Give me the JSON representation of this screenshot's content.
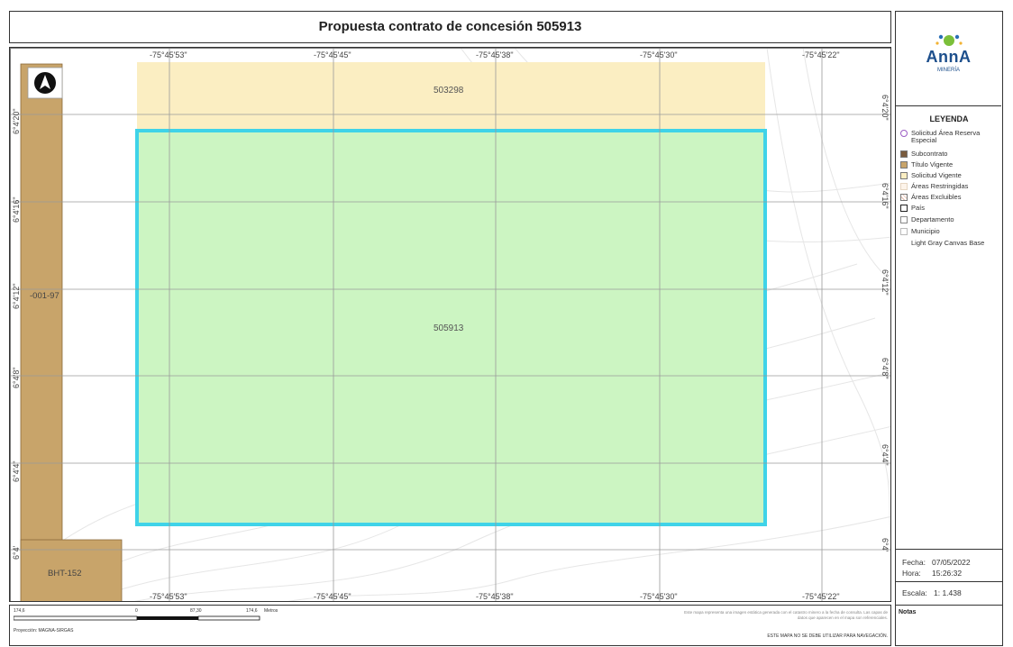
{
  "title": "Propuesta contrato de concesión 505913",
  "map": {
    "top_lon_labels": [
      "-75°45'53\"",
      "-75°45'45\"",
      "-75°45'38\"",
      "-75°45'30\"",
      "-75°45'22\""
    ],
    "bottom_lon_labels": [
      "-75°45'53\"",
      "-75°45'45\"",
      "-75°45'38\"",
      "-75°45'30\"",
      "-75°45'22\""
    ],
    "left_lat_labels": [
      "6°4'20\"",
      "6°4'16\"",
      "6°4'12\"",
      "6°4'8\"",
      "6°4'4\"",
      "6°4'"
    ],
    "right_lat_labels": [
      "6°4'20\"",
      "6°4'16\"",
      "6°4'12\"",
      "6°4'8\"",
      "6°4'4\"",
      "6°4'"
    ],
    "areas": {
      "yellow_label": "503298",
      "green_label": "505913",
      "brown_strip_label": "-001-97",
      "brown_bottom_label": "BHT-152"
    },
    "colors": {
      "solicitud_vigente": "#fbeec2",
      "propuesta": "#ccf5c2",
      "propuesta_border": "#3fd3e8",
      "titulo_vigente": "#c8a46a",
      "grid": "#9a9a9a"
    }
  },
  "logo": {
    "text": "AnnA",
    "subtext": "MINERÍA"
  },
  "legend": {
    "title": "LEYENDA",
    "items": [
      {
        "label": "Solicitud Área Reserva Especial",
        "swatch": "purple-ring"
      },
      {
        "label": "Subcontrato",
        "swatch": "#7a5c3e"
      },
      {
        "label": "Título Vigente",
        "swatch": "#c8a46a"
      },
      {
        "label": "Solicitud Vigente",
        "swatch": "#fbeec2"
      },
      {
        "label": "Áreas Restringidas",
        "swatch": "#fdf4ea"
      },
      {
        "label": "Áreas Excluibles",
        "swatch": "hatch"
      },
      {
        "label": "País",
        "swatch": "#ffffff"
      },
      {
        "label": "Departamento",
        "swatch": "#ffffff"
      },
      {
        "label": "Municipio",
        "swatch": "#ffffff"
      },
      {
        "label": "Light Gray Canvas Base",
        "swatch": "none"
      }
    ]
  },
  "info": {
    "fecha_label": "Fecha:",
    "fecha_value": "07/05/2022",
    "hora_label": "Hora:",
    "hora_value": "15:26:32",
    "escala_label": "Escala:",
    "escala_value": "1: 1.438",
    "notas_label": "Notas"
  },
  "scalebar": {
    "labels": [
      "174,6",
      "0",
      "87,30",
      "174,6",
      "Metros"
    ],
    "projection": "Proyección: MAGNA-SIRGAS"
  },
  "disclaimer": {
    "text": "Este mapa representa una imagen estática generada con el catastro minero a la fecha de consulta. Las capas de datos que aparecen en el mapa son referenciales.",
    "warning": "ESTE MAPA NO SE DEBE UTILIZAR PARA NAVEGACIÓN."
  }
}
